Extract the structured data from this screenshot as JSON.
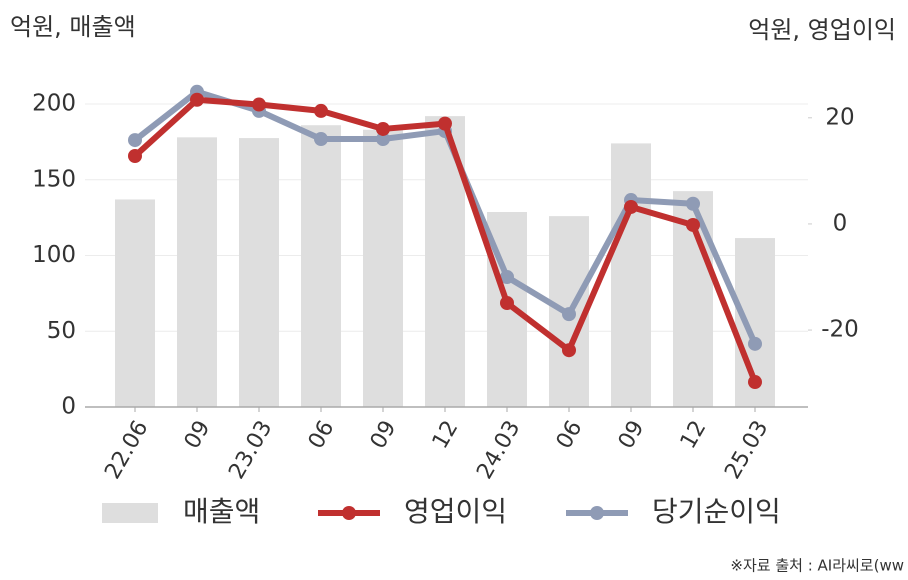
{
  "chart_data": {
    "type": "combo",
    "y_label": "억원, 매출액",
    "y2_label": "억원, 영업이익",
    "source": "※자료 출처 : AI라씨로(ww",
    "categories": [
      "22.06",
      "09",
      "23.03",
      "06",
      "09",
      "12",
      "24.03",
      "06",
      "09",
      "12",
      "25.03"
    ],
    "series": [
      {
        "name": "매출액",
        "type": "bar",
        "color": "#dedede",
        "values": [
          137,
          178,
          177.5,
          186,
          183,
          192,
          128.7,
          126,
          174,
          142.5,
          111.5
        ]
      },
      {
        "name": "영업이익",
        "type": "line",
        "axis": "y2",
        "color": "#c0302f",
        "values": [
          12.8,
          23.4,
          22.5,
          21.3,
          17.9,
          18.9,
          -14.9,
          -23.8,
          3.2,
          -0.2,
          -29.8
        ]
      },
      {
        "name": "당기순이익",
        "type": "line",
        "axis": "y2",
        "color": "#8f9bb5",
        "values": [
          15.8,
          24.9,
          21.3,
          16.0,
          16.0,
          17.5,
          -10.0,
          -17.0,
          4.5,
          3.8,
          -22.6
        ]
      }
    ],
    "ylim": [
      0,
      200
    ],
    "yticks": [
      0,
      50,
      100,
      150,
      200
    ],
    "y2lim": [
      -34.5,
      22.6
    ],
    "y2ticks": [
      -20,
      0,
      20
    ],
    "grid": true
  }
}
